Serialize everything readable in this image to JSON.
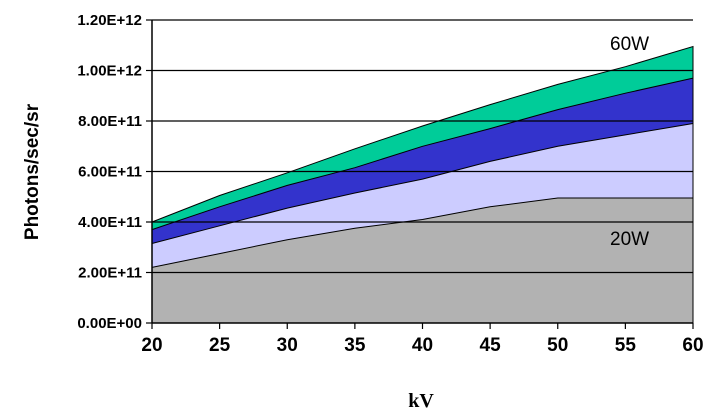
{
  "chart_data": {
    "type": "area",
    "stacked": true,
    "x": [
      20,
      25,
      30,
      35,
      40,
      45,
      50,
      55,
      60
    ],
    "xlabel": "kV",
    "ylabel": "Photons/sec/sr",
    "xlim": [
      20,
      60
    ],
    "ylim": [
      0,
      1200000000000.0
    ],
    "y_ticks": [
      "0.00E+00",
      "2.00E+11",
      "4.00E+11",
      "6.00E+11",
      "8.00E+11",
      "1.00E+12",
      "1.20E+12"
    ],
    "x_ticks": [
      "20",
      "25",
      "30",
      "35",
      "40",
      "45",
      "50",
      "55",
      "60"
    ],
    "grid": "horizontal",
    "series": [
      {
        "name": "20W",
        "color": "#b2b2b2",
        "values": [
          220000000000.0,
          275000000000.0,
          330000000000.0,
          375000000000.0,
          410000000000.0,
          460000000000.0,
          495000000000.0,
          495000000000.0,
          495000000000.0
        ]
      },
      {
        "color": "#ccccff",
        "values": [
          315000000000.0,
          385000000000.0,
          455000000000.0,
          515000000000.0,
          570000000000.0,
          640000000000.0,
          700000000000.0,
          745000000000.0,
          790000000000.0
        ]
      },
      {
        "color": "#3333cc",
        "values": [
          370000000000.0,
          460000000000.0,
          545000000000.0,
          615000000000.0,
          700000000000.0,
          770000000000.0,
          845000000000.0,
          910000000000.0,
          970000000000.0
        ]
      },
      {
        "name": "60W",
        "color": "#00cc99",
        "values": [
          400000000000.0,
          505000000000.0,
          595000000000.0,
          690000000000.0,
          780000000000.0,
          865000000000.0,
          945000000000.0,
          1015000000000.0,
          1095000000000.0
        ]
      }
    ]
  }
}
